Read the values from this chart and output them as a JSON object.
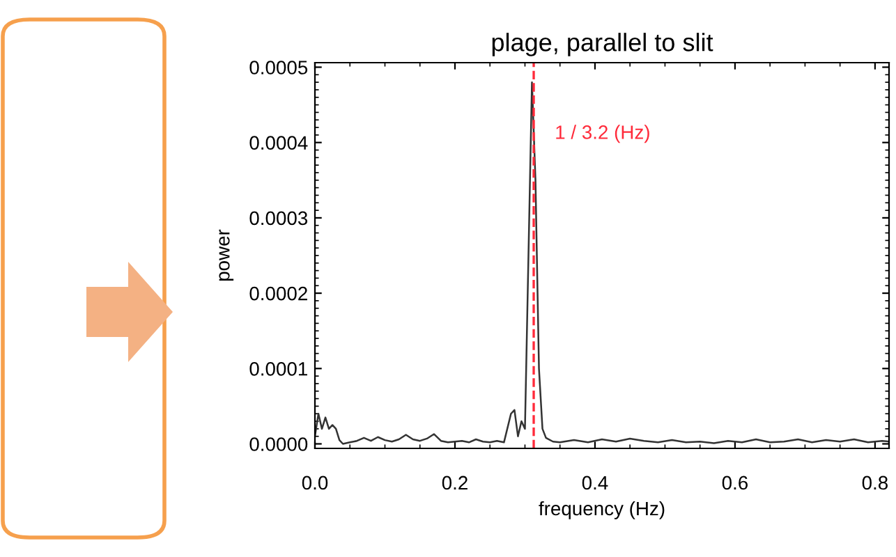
{
  "chart_data": {
    "type": "line",
    "title": "plage, parallel to slit",
    "xlabel": "frequency (Hz)",
    "ylabel": "power",
    "x": [
      0.0,
      0.005,
      0.01,
      0.015,
      0.02,
      0.025,
      0.03,
      0.035,
      0.04,
      0.05,
      0.06,
      0.07,
      0.08,
      0.09,
      0.1,
      0.11,
      0.12,
      0.13,
      0.14,
      0.15,
      0.16,
      0.17,
      0.18,
      0.19,
      0.2,
      0.21,
      0.22,
      0.23,
      0.24,
      0.25,
      0.26,
      0.27,
      0.28,
      0.285,
      0.29,
      0.295,
      0.3,
      0.305,
      0.31,
      0.315,
      0.32,
      0.325,
      0.33,
      0.34,
      0.35,
      0.37,
      0.39,
      0.41,
      0.43,
      0.45,
      0.47,
      0.49,
      0.51,
      0.53,
      0.55,
      0.57,
      0.59,
      0.61,
      0.63,
      0.65,
      0.67,
      0.69,
      0.71,
      0.73,
      0.75,
      0.77,
      0.79,
      0.81,
      0.82
    ],
    "series": [
      {
        "color": "#333333",
        "values": [
          1e-05,
          4e-05,
          2e-05,
          3.5e-05,
          2e-05,
          2.5e-05,
          2e-05,
          5e-06,
          0.0,
          2e-06,
          4e-06,
          8e-06,
          4e-06,
          9e-06,
          5e-06,
          3e-06,
          6e-06,
          1.2e-05,
          6e-06,
          4e-06,
          7e-06,
          1.3e-05,
          4e-06,
          2e-06,
          3e-06,
          4e-06,
          2e-06,
          6e-06,
          3e-06,
          2e-06,
          4e-06,
          2e-06,
          4e-05,
          4.5e-05,
          1e-05,
          3e-05,
          2e-05,
          0.00025,
          0.00048,
          0.00035,
          0.0001,
          2e-05,
          8e-06,
          3e-06,
          2e-06,
          5e-06,
          2e-06,
          6e-06,
          3e-06,
          7e-06,
          4e-06,
          2e-06,
          5e-06,
          2e-06,
          3e-06,
          1e-06,
          4e-06,
          2e-06,
          6e-06,
          2e-06,
          3e-06,
          6e-06,
          2e-06,
          5e-06,
          3e-06,
          6e-06,
          2e-06,
          4e-06,
          3e-06
        ]
      }
    ],
    "xlim": [
      0,
      0.82
    ],
    "ylim": [
      -6e-06,
      0.000506
    ],
    "xticks": [
      {
        "value": 0,
        "label": "0.0"
      },
      {
        "value": 0.2,
        "label": "0.2"
      },
      {
        "value": 0.4,
        "label": "0.4"
      },
      {
        "value": 0.6,
        "label": "0.6"
      },
      {
        "value": 0.8,
        "label": "0.8"
      }
    ],
    "yticks": [
      {
        "value": 0,
        "label": "0.0000"
      },
      {
        "value": 0.0001,
        "label": "0.0001"
      },
      {
        "value": 0.0002,
        "label": "0.0002"
      },
      {
        "value": 0.0003,
        "label": "0.0003"
      },
      {
        "value": 0.0004,
        "label": "0.0004"
      },
      {
        "value": 0.0005,
        "label": "0.0005"
      }
    ],
    "ref_lines": [
      {
        "axis": "x",
        "value": 0.3125,
        "label": "1 / 3.2 (Hz)",
        "color": "#ff2a3a",
        "line_style": "dashed"
      }
    ],
    "grid": false,
    "marker": "none",
    "line_style": "solid"
  }
}
